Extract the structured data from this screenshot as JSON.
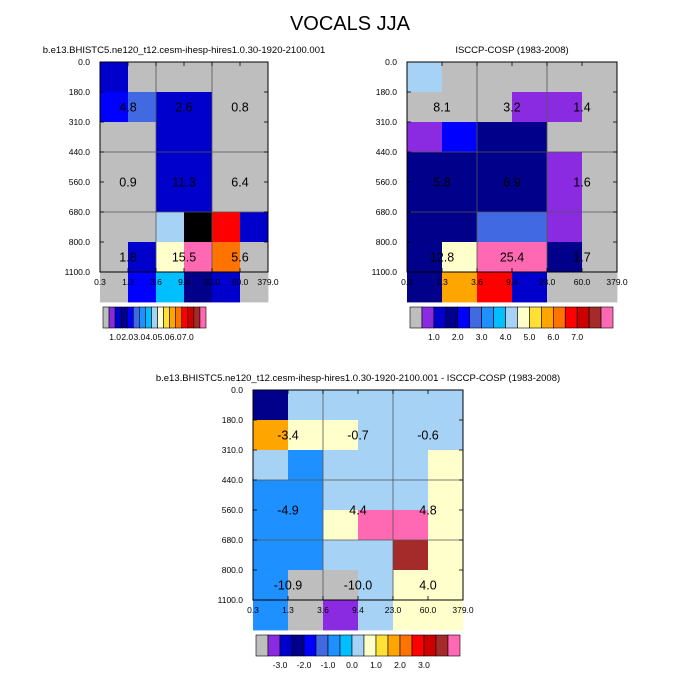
{
  "figure_title": "VOCALS JJA",
  "chart_data": [
    {
      "type": "heatmap",
      "title": "b.e13.BHISTC5.ne120_t12.cesm-ihesp-hires1.0.30-1920-2100.001",
      "x_tick_labels": [
        "0.3",
        "1.3",
        "3.6",
        "9.4",
        "23.0",
        "60.0",
        "379.0"
      ],
      "y_tick_labels": [
        "0.0",
        "180.0",
        "310.0",
        "440.0",
        "560.0",
        "680.0",
        "800.0",
        "1100.0"
      ],
      "cells": [
        [
          2,
          0,
          0,
          0,
          0,
          0
        ],
        [
          4,
          5,
          2,
          2,
          0,
          0
        ],
        [
          0,
          0,
          2,
          2,
          0,
          0
        ],
        [
          0,
          0,
          2,
          2,
          0,
          0
        ],
        [
          0,
          0,
          2,
          2,
          0,
          0
        ],
        [
          0,
          0,
          8,
          17,
          13,
          2
        ],
        [
          0,
          2,
          9,
          16,
          12,
          0
        ],
        [
          0,
          4,
          7,
          3,
          2,
          0
        ]
      ],
      "box_labels": [
        {
          "text": "4.8",
          "col": 0,
          "row": 0
        },
        {
          "text": "2.6",
          "col": 1,
          "row": 0
        },
        {
          "text": "0.8",
          "col": 2,
          "row": 0
        },
        {
          "text": "0.9",
          "col": 0,
          "row": 1
        },
        {
          "text": "11.3",
          "col": 1,
          "row": 1
        },
        {
          "text": "6.4",
          "col": 2,
          "row": 1
        },
        {
          "text": "1.8",
          "col": 0,
          "row": 2
        },
        {
          "text": "15.5",
          "col": 1,
          "row": 2
        },
        {
          "text": "5.6",
          "col": 2,
          "row": 2
        }
      ],
      "colorbar": {
        "labels": [
          "1.0",
          "2.0",
          "3.0",
          "4.0",
          "5.0",
          "6.0",
          "7.0"
        ],
        "colors": [
          "#bebebe",
          "#8a2be2",
          "#0000cd",
          "#00008b",
          "#0000ff",
          "#4169e1",
          "#1e90ff",
          "#00bfff",
          "#a6d2f5",
          "#ffffcc",
          "#ffe135",
          "#ffa500",
          "#ff7300",
          "#ff0000",
          "#cd0000",
          "#a52a2a",
          "#ff69b4"
        ]
      }
    },
    {
      "type": "heatmap",
      "title": "ISCCP-COSP (1983-2008)",
      "x_tick_labels": [
        "0.3",
        "1.3",
        "3.6",
        "9.4",
        "23.0",
        "60.0",
        "379.0"
      ],
      "y_tick_labels": [
        "0.0",
        "180.0",
        "310.0",
        "440.0",
        "560.0",
        "680.0",
        "800.0",
        "1100.0"
      ],
      "cells": [
        [
          8,
          0,
          0,
          0,
          0,
          0
        ],
        [
          0,
          0,
          0,
          1,
          1,
          0
        ],
        [
          1,
          4,
          3,
          3,
          0,
          0
        ],
        [
          3,
          3,
          3,
          3,
          1,
          0
        ],
        [
          3,
          3,
          3,
          3,
          1,
          0
        ],
        [
          3,
          3,
          5,
          5,
          1,
          0
        ],
        [
          3,
          9,
          16,
          16,
          3,
          0
        ],
        [
          3,
          11,
          13,
          2,
          0,
          0
        ]
      ],
      "box_labels": [
        {
          "text": "8.1",
          "col": 0,
          "row": 0
        },
        {
          "text": "3.2",
          "col": 1,
          "row": 0
        },
        {
          "text": "1.4",
          "col": 2,
          "row": 0
        },
        {
          "text": "5.8",
          "col": 0,
          "row": 1
        },
        {
          "text": "6.9",
          "col": 1,
          "row": 1
        },
        {
          "text": "1.6",
          "col": 2,
          "row": 1
        },
        {
          "text": "12.8",
          "col": 0,
          "row": 2
        },
        {
          "text": "25.4",
          "col": 1,
          "row": 2
        },
        {
          "text": "1.7",
          "col": 2,
          "row": 2
        }
      ],
      "colorbar": {
        "labels": [
          "1.0",
          "2.0",
          "3.0",
          "4.0",
          "5.0",
          "6.0",
          "7.0"
        ],
        "colors": [
          "#bebebe",
          "#8a2be2",
          "#0000cd",
          "#00008b",
          "#0000ff",
          "#4169e1",
          "#1e90ff",
          "#00bfff",
          "#a6d2f5",
          "#ffffcc",
          "#ffe135",
          "#ffa500",
          "#ff7300",
          "#ff0000",
          "#cd0000",
          "#a52a2a",
          "#ff69b4"
        ]
      }
    },
    {
      "type": "heatmap",
      "title": "b.e13.BHISTC5.ne120_t12.cesm-ihesp-hires1.0.30-1920-2100.001 - ISCCP-COSP (1983-2008)",
      "x_tick_labels": [
        "0.3",
        "1.3",
        "3.6",
        "9.4",
        "23.0",
        "60.0",
        "379.0"
      ],
      "y_tick_labels": [
        "0.0",
        "180.0",
        "310.0",
        "440.0",
        "560.0",
        "680.0",
        "800.0",
        "1100.0"
      ],
      "cells": [
        [
          3,
          8,
          8,
          8,
          8,
          8
        ],
        [
          11,
          9,
          9,
          8,
          8,
          8
        ],
        [
          8,
          6,
          8,
          8,
          8,
          9
        ],
        [
          6,
          6,
          8,
          8,
          8,
          9
        ],
        [
          6,
          6,
          9,
          16,
          16,
          9
        ],
        [
          6,
          6,
          8,
          8,
          15,
          9
        ],
        [
          6,
          0,
          0,
          8,
          9,
          9
        ],
        [
          6,
          0,
          1,
          8,
          9,
          9
        ]
      ],
      "box_labels": [
        {
          "text": "-3.4",
          "col": 0,
          "row": 0
        },
        {
          "text": "-0.7",
          "col": 1,
          "row": 0
        },
        {
          "text": "-0.6",
          "col": 2,
          "row": 0
        },
        {
          "text": "-4.9",
          "col": 0,
          "row": 1
        },
        {
          "text": "4.4",
          "col": 1,
          "row": 1
        },
        {
          "text": "4.8",
          "col": 2,
          "row": 1
        },
        {
          "text": "-10.9",
          "col": 0,
          "row": 2
        },
        {
          "text": "-10.0",
          "col": 1,
          "row": 2
        },
        {
          "text": "4.0",
          "col": 2,
          "row": 2
        }
      ],
      "colorbar": {
        "labels": [
          "-3.0",
          "-2.0",
          "-1.0",
          "0.0",
          "1.0",
          "2.0",
          "3.0"
        ],
        "colors": [
          "#bebebe",
          "#8a2be2",
          "#0000cd",
          "#00008b",
          "#0000ff",
          "#4169e1",
          "#1e90ff",
          "#00bfff",
          "#a6d2f5",
          "#ffffcc",
          "#ffe135",
          "#ffa500",
          "#ff7300",
          "#ff0000",
          "#cd0000",
          "#a52a2a",
          "#ff69b4"
        ]
      }
    }
  ]
}
